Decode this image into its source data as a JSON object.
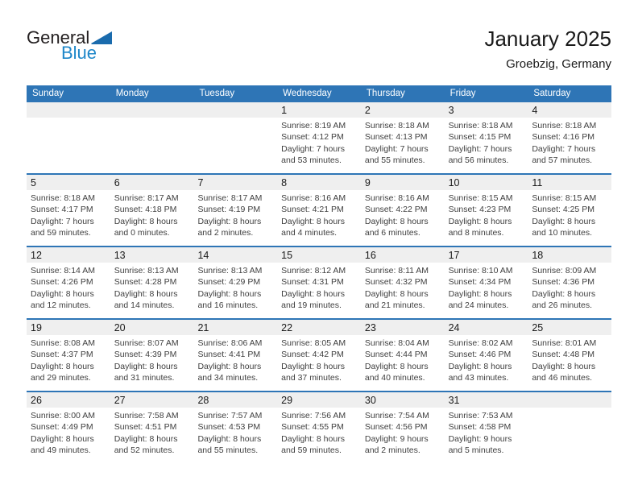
{
  "logo": {
    "text_black": "General",
    "text_blue": "Blue"
  },
  "header": {
    "title": "January 2025",
    "subtitle": "Groebzig, Germany"
  },
  "colors": {
    "accent_blue": "#2E75B6",
    "band_gray": "#EFEFEF",
    "cell_text_gray": "#404040",
    "logo_text_blue": "#1E87C9",
    "logo_triangle_blue": "#1A6BAD"
  },
  "calendar": {
    "day_headers": [
      "Sunday",
      "Monday",
      "Tuesday",
      "Wednesday",
      "Thursday",
      "Friday",
      "Saturday"
    ],
    "weeks": [
      [
        {
          "day": ""
        },
        {
          "day": ""
        },
        {
          "day": ""
        },
        {
          "day": "1",
          "sunrise": "Sunrise: 8:19 AM",
          "sunset": "Sunset: 4:12 PM",
          "daylight1": "Daylight: 7 hours",
          "daylight2": "and 53 minutes."
        },
        {
          "day": "2",
          "sunrise": "Sunrise: 8:18 AM",
          "sunset": "Sunset: 4:13 PM",
          "daylight1": "Daylight: 7 hours",
          "daylight2": "and 55 minutes."
        },
        {
          "day": "3",
          "sunrise": "Sunrise: 8:18 AM",
          "sunset": "Sunset: 4:15 PM",
          "daylight1": "Daylight: 7 hours",
          "daylight2": "and 56 minutes."
        },
        {
          "day": "4",
          "sunrise": "Sunrise: 8:18 AM",
          "sunset": "Sunset: 4:16 PM",
          "daylight1": "Daylight: 7 hours",
          "daylight2": "and 57 minutes."
        }
      ],
      [
        {
          "day": "5",
          "sunrise": "Sunrise: 8:18 AM",
          "sunset": "Sunset: 4:17 PM",
          "daylight1": "Daylight: 7 hours",
          "daylight2": "and 59 minutes."
        },
        {
          "day": "6",
          "sunrise": "Sunrise: 8:17 AM",
          "sunset": "Sunset: 4:18 PM",
          "daylight1": "Daylight: 8 hours",
          "daylight2": "and 0 minutes."
        },
        {
          "day": "7",
          "sunrise": "Sunrise: 8:17 AM",
          "sunset": "Sunset: 4:19 PM",
          "daylight1": "Daylight: 8 hours",
          "daylight2": "and 2 minutes."
        },
        {
          "day": "8",
          "sunrise": "Sunrise: 8:16 AM",
          "sunset": "Sunset: 4:21 PM",
          "daylight1": "Daylight: 8 hours",
          "daylight2": "and 4 minutes."
        },
        {
          "day": "9",
          "sunrise": "Sunrise: 8:16 AM",
          "sunset": "Sunset: 4:22 PM",
          "daylight1": "Daylight: 8 hours",
          "daylight2": "and 6 minutes."
        },
        {
          "day": "10",
          "sunrise": "Sunrise: 8:15 AM",
          "sunset": "Sunset: 4:23 PM",
          "daylight1": "Daylight: 8 hours",
          "daylight2": "and 8 minutes."
        },
        {
          "day": "11",
          "sunrise": "Sunrise: 8:15 AM",
          "sunset": "Sunset: 4:25 PM",
          "daylight1": "Daylight: 8 hours",
          "daylight2": "and 10 minutes."
        }
      ],
      [
        {
          "day": "12",
          "sunrise": "Sunrise: 8:14 AM",
          "sunset": "Sunset: 4:26 PM",
          "daylight1": "Daylight: 8 hours",
          "daylight2": "and 12 minutes."
        },
        {
          "day": "13",
          "sunrise": "Sunrise: 8:13 AM",
          "sunset": "Sunset: 4:28 PM",
          "daylight1": "Daylight: 8 hours",
          "daylight2": "and 14 minutes."
        },
        {
          "day": "14",
          "sunrise": "Sunrise: 8:13 AM",
          "sunset": "Sunset: 4:29 PM",
          "daylight1": "Daylight: 8 hours",
          "daylight2": "and 16 minutes."
        },
        {
          "day": "15",
          "sunrise": "Sunrise: 8:12 AM",
          "sunset": "Sunset: 4:31 PM",
          "daylight1": "Daylight: 8 hours",
          "daylight2": "and 19 minutes."
        },
        {
          "day": "16",
          "sunrise": "Sunrise: 8:11 AM",
          "sunset": "Sunset: 4:32 PM",
          "daylight1": "Daylight: 8 hours",
          "daylight2": "and 21 minutes."
        },
        {
          "day": "17",
          "sunrise": "Sunrise: 8:10 AM",
          "sunset": "Sunset: 4:34 PM",
          "daylight1": "Daylight: 8 hours",
          "daylight2": "and 24 minutes."
        },
        {
          "day": "18",
          "sunrise": "Sunrise: 8:09 AM",
          "sunset": "Sunset: 4:36 PM",
          "daylight1": "Daylight: 8 hours",
          "daylight2": "and 26 minutes."
        }
      ],
      [
        {
          "day": "19",
          "sunrise": "Sunrise: 8:08 AM",
          "sunset": "Sunset: 4:37 PM",
          "daylight1": "Daylight: 8 hours",
          "daylight2": "and 29 minutes."
        },
        {
          "day": "20",
          "sunrise": "Sunrise: 8:07 AM",
          "sunset": "Sunset: 4:39 PM",
          "daylight1": "Daylight: 8 hours",
          "daylight2": "and 31 minutes."
        },
        {
          "day": "21",
          "sunrise": "Sunrise: 8:06 AM",
          "sunset": "Sunset: 4:41 PM",
          "daylight1": "Daylight: 8 hours",
          "daylight2": "and 34 minutes."
        },
        {
          "day": "22",
          "sunrise": "Sunrise: 8:05 AM",
          "sunset": "Sunset: 4:42 PM",
          "daylight1": "Daylight: 8 hours",
          "daylight2": "and 37 minutes."
        },
        {
          "day": "23",
          "sunrise": "Sunrise: 8:04 AM",
          "sunset": "Sunset: 4:44 PM",
          "daylight1": "Daylight: 8 hours",
          "daylight2": "and 40 minutes."
        },
        {
          "day": "24",
          "sunrise": "Sunrise: 8:02 AM",
          "sunset": "Sunset: 4:46 PM",
          "daylight1": "Daylight: 8 hours",
          "daylight2": "and 43 minutes."
        },
        {
          "day": "25",
          "sunrise": "Sunrise: 8:01 AM",
          "sunset": "Sunset: 4:48 PM",
          "daylight1": "Daylight: 8 hours",
          "daylight2": "and 46 minutes."
        }
      ],
      [
        {
          "day": "26",
          "sunrise": "Sunrise: 8:00 AM",
          "sunset": "Sunset: 4:49 PM",
          "daylight1": "Daylight: 8 hours",
          "daylight2": "and 49 minutes."
        },
        {
          "day": "27",
          "sunrise": "Sunrise: 7:58 AM",
          "sunset": "Sunset: 4:51 PM",
          "daylight1": "Daylight: 8 hours",
          "daylight2": "and 52 minutes."
        },
        {
          "day": "28",
          "sunrise": "Sunrise: 7:57 AM",
          "sunset": "Sunset: 4:53 PM",
          "daylight1": "Daylight: 8 hours",
          "daylight2": "and 55 minutes."
        },
        {
          "day": "29",
          "sunrise": "Sunrise: 7:56 AM",
          "sunset": "Sunset: 4:55 PM",
          "daylight1": "Daylight: 8 hours",
          "daylight2": "and 59 minutes."
        },
        {
          "day": "30",
          "sunrise": "Sunrise: 7:54 AM",
          "sunset": "Sunset: 4:56 PM",
          "daylight1": "Daylight: 9 hours",
          "daylight2": "and 2 minutes."
        },
        {
          "day": "31",
          "sunrise": "Sunrise: 7:53 AM",
          "sunset": "Sunset: 4:58 PM",
          "daylight1": "Daylight: 9 hours",
          "daylight2": "and 5 minutes."
        },
        {
          "day": ""
        }
      ]
    ]
  }
}
